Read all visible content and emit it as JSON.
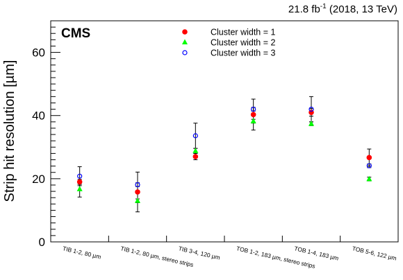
{
  "chart_data": {
    "type": "scatter",
    "experiment_label": "CMS",
    "lumi_value": "21.8 fb",
    "lumi_exponent": "-1",
    "lumi_rest": " (2018, 13 TeV)",
    "ylabel": "Strip hit resolution [µm]",
    "xlabel": "",
    "ylim": [
      0,
      70
    ],
    "yticks": [
      0,
      20,
      40,
      60
    ],
    "categories": [
      "TIB 1-2, 80 µm",
      "TIB 1-2, 80 µm, stereo strips",
      "TIB 3-4, 120 µm",
      "TOB 1-2, 183 µm, stereo strips",
      "TOB 1-4, 183 µm",
      "TOB 5-6, 122 µm"
    ],
    "series": [
      {
        "name": "Cluster width = 1",
        "marker": "circle-filled",
        "color": "#ff0000",
        "values": [
          19.0,
          15.8,
          27.0,
          40.3,
          41.0,
          26.7
        ],
        "errors": [
          0.8,
          6.3,
          1.0,
          4.9,
          1.2,
          2.7
        ]
      },
      {
        "name": "Cluster width = 2",
        "marker": "triangle-filled",
        "color": "#00ff00",
        "values": [
          16.7,
          13.0,
          28.8,
          38.2,
          37.4,
          19.9
        ],
        "errors": [
          2.5,
          0.6,
          0.8,
          0.6,
          0.6,
          0.6
        ]
      },
      {
        "name": "Cluster width = 3",
        "marker": "circle-open",
        "color": "#0000ff",
        "values": [
          20.8,
          18.1,
          33.6,
          42.0,
          42.0,
          24.1
        ],
        "errors": [
          3.0,
          0.6,
          4.0,
          0.6,
          4.0,
          0.6
        ]
      }
    ],
    "grid": false,
    "legend_position": "top-center"
  }
}
